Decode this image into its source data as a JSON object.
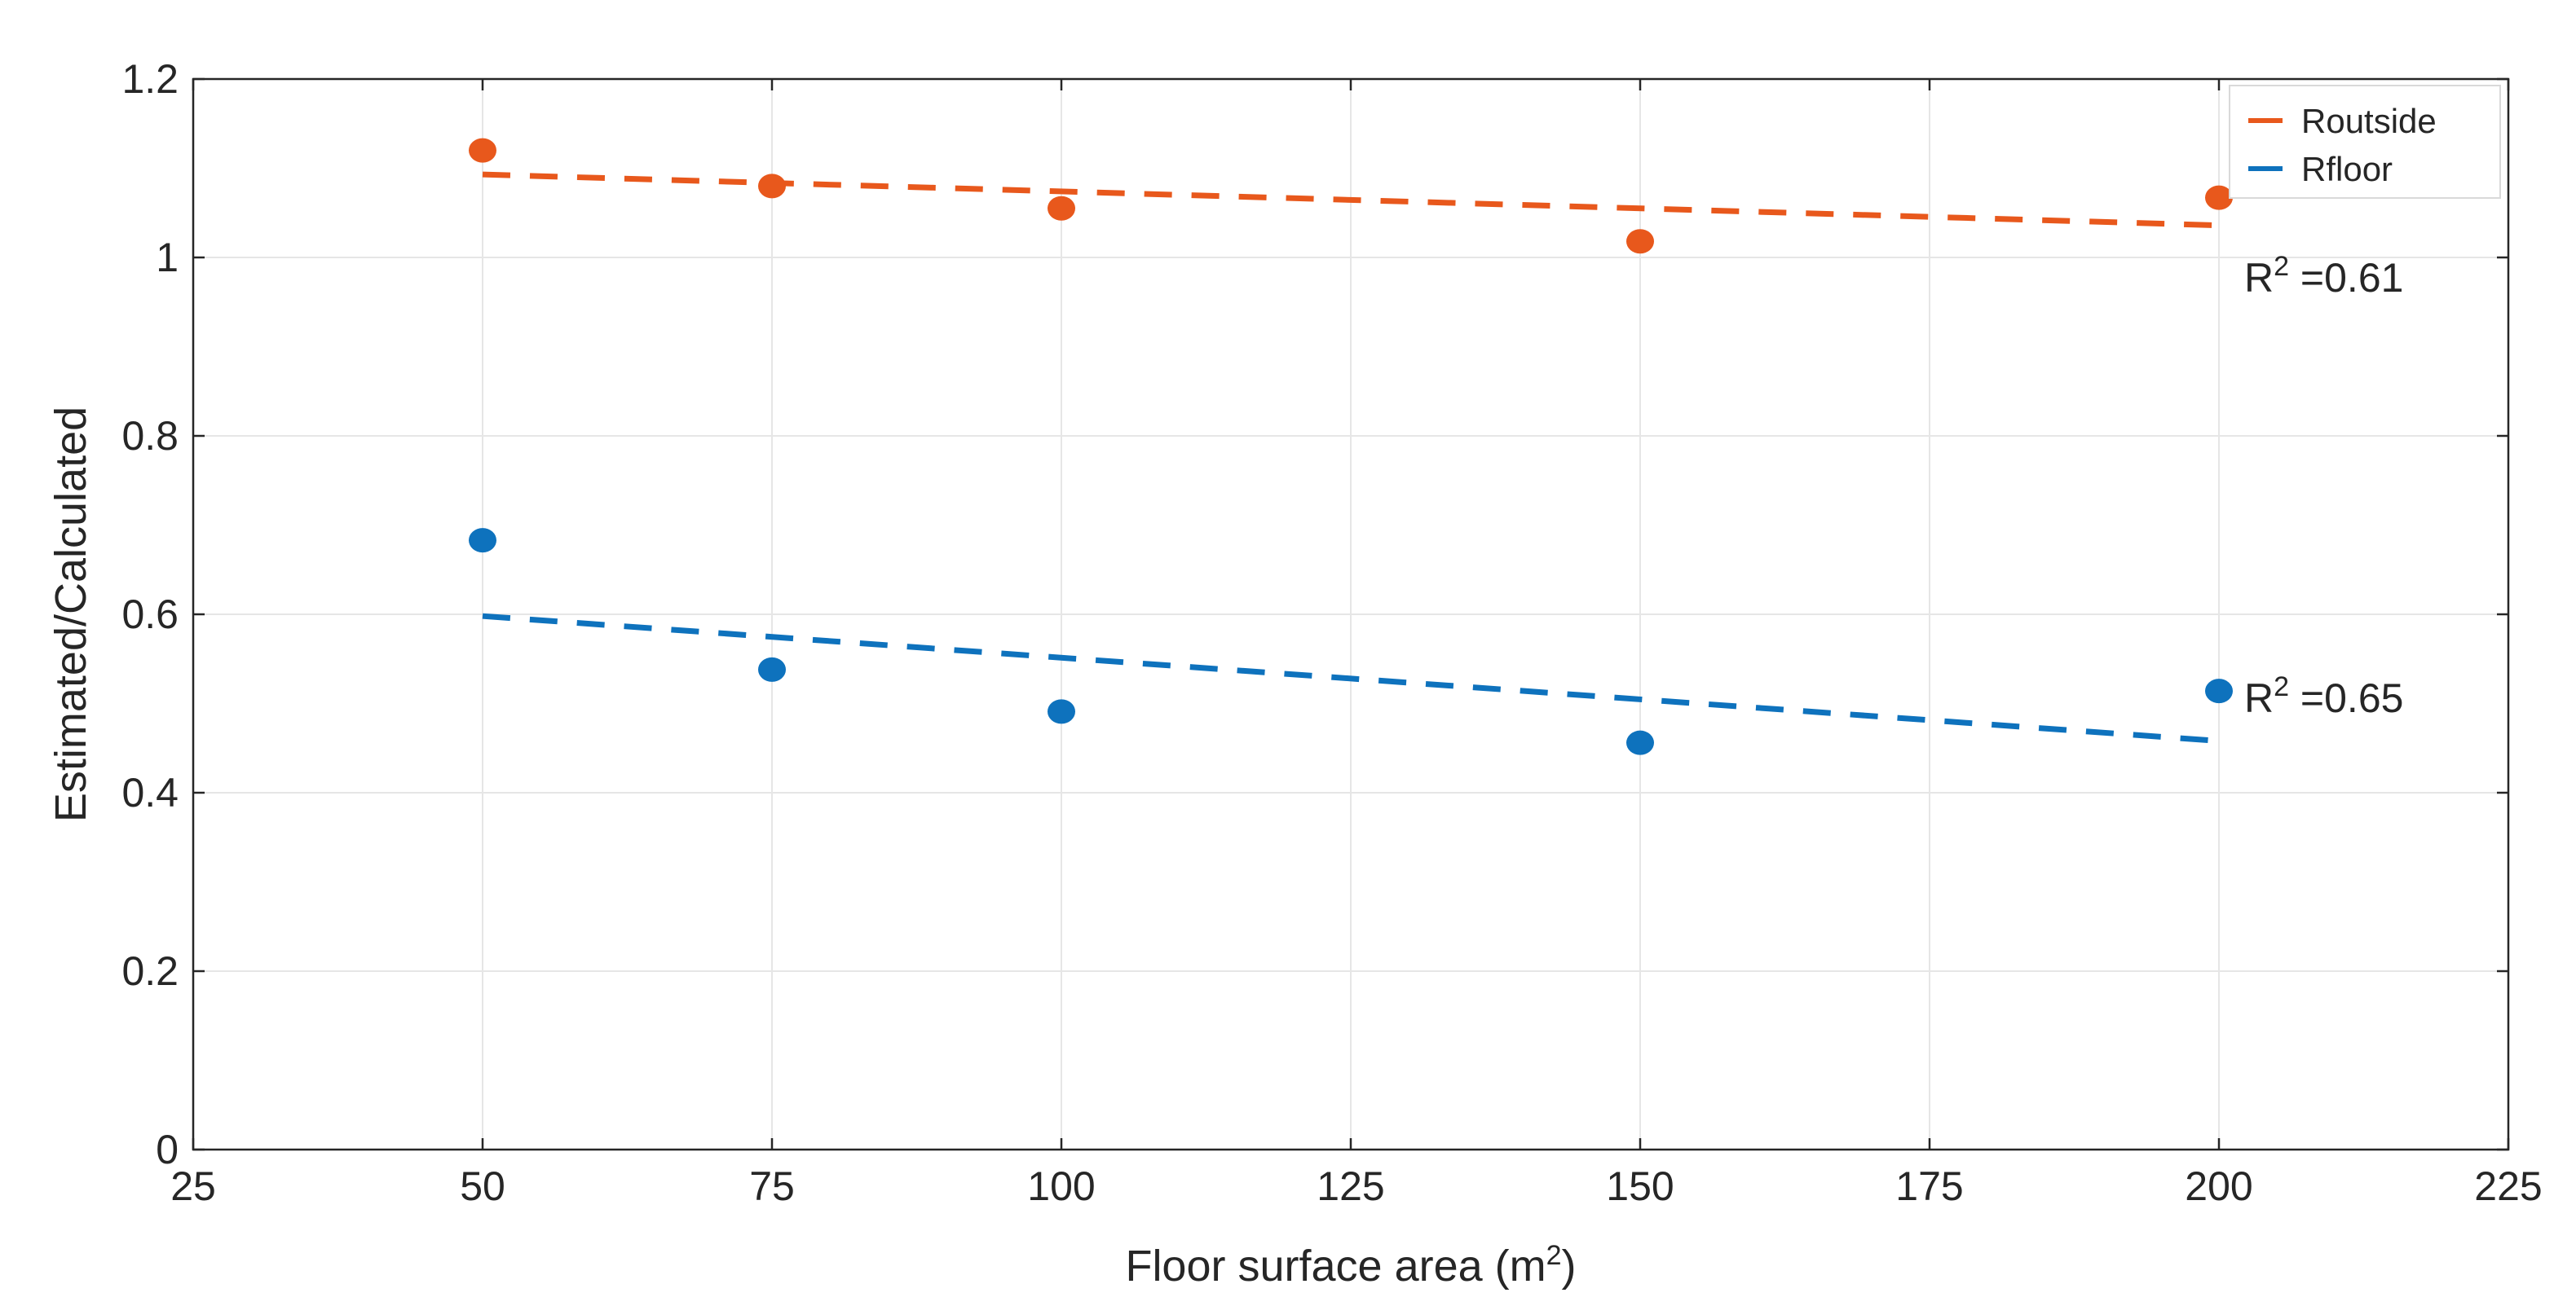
{
  "chart_data": {
    "type": "scatter",
    "title": "",
    "xlabel": "Floor surface area (m",
    "xlabel_sup": "2",
    "xlabel_close": ")",
    "ylabel": "Estimated/Calculated",
    "xlim": [
      25,
      225
    ],
    "ylim": [
      0,
      1.2
    ],
    "xticks": [
      25,
      50,
      75,
      100,
      125,
      150,
      175,
      200,
      225
    ],
    "xtick_labels": [
      "25",
      "50",
      "75",
      "100",
      "125",
      "150",
      "175",
      "200",
      "225"
    ],
    "yticks": [
      0,
      0.2,
      0.4,
      0.6,
      0.8,
      1.0,
      1.2
    ],
    "ytick_labels": [
      "0",
      "0.2",
      "0.4",
      "0.6",
      "0.8",
      "1",
      "1.2"
    ],
    "grid": true,
    "legend_position": "top-right",
    "series": [
      {
        "name": "Routside",
        "color": "#E8581C",
        "x": [
          50,
          75,
          100,
          150,
          200
        ],
        "y": [
          1.12,
          1.08,
          1.055,
          1.018,
          1.067
        ],
        "trend": {
          "x": [
            50,
            200
          ],
          "y": [
            1.093,
            1.036
          ]
        },
        "r2_label": "R",
        "r2_sup": "2",
        "r2_value": " =0.61"
      },
      {
        "name": "Rfloor",
        "color": "#0E72BD",
        "x": [
          50,
          75,
          100,
          150,
          200
        ],
        "y": [
          0.683,
          0.538,
          0.491,
          0.456,
          0.514
        ],
        "trend": {
          "x": [
            50,
            200
          ],
          "y": [
            0.598,
            0.458
          ]
        },
        "r2_label": "R",
        "r2_sup": "2",
        "r2_value": " =0.65"
      }
    ]
  }
}
